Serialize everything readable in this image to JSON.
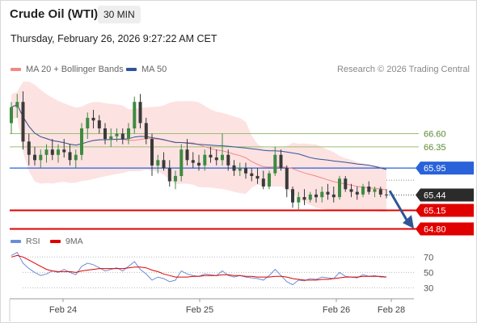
{
  "header": {
    "title": "Crude Oil (WTI)",
    "interval": "30 MIN",
    "datetime": "Thursday, February 26, 2026 9:27:22 AM CET"
  },
  "legend": [
    {
      "label": "MA 20 + Bollinger Bands",
      "color": "#f08a84"
    },
    {
      "label": "MA 50",
      "color": "#2f5597"
    }
  ],
  "copyright": "Research © 2026 Trading Central",
  "colors": {
    "candle_up": "#3d8b40",
    "candle_down": "#3a3a3a",
    "bollinger_fill": "#fde2e2",
    "ma20": "#f08a84",
    "ma50": "#2f5597",
    "resistance": "#9bbf70",
    "pivot": "#2962d9",
    "support": "#e00000",
    "last_price": "#2b2b2b",
    "rsi": "#6a8fd8",
    "rsi_ma": "#e00000",
    "arrow": "#2f5597"
  },
  "chart_data": [
    {
      "type": "candlestick",
      "x_ticks": [
        "Feb 24",
        "Feb 25",
        "Feb 26",
        "Feb 28"
      ],
      "ylim": [
        64.7,
        67.6
      ],
      "levels": [
        {
          "value": 66.6,
          "label": "66.60",
          "kind": "resistance"
        },
        {
          "value": 66.35,
          "label": "66.35",
          "kind": "resistance"
        },
        {
          "value": 65.95,
          "label": "65.95",
          "kind": "pivot"
        },
        {
          "value": 65.44,
          "label": "65.44",
          "kind": "last_price"
        },
        {
          "value": 65.15,
          "label": "65.15",
          "kind": "support"
        },
        {
          "value": 64.8,
          "label": "64.80",
          "kind": "support"
        }
      ],
      "projection": {
        "from": 65.52,
        "to": 64.85
      },
      "ohlc": [
        [
          66.8,
          67.2,
          66.6,
          67.1
        ],
        [
          67.1,
          67.35,
          66.9,
          67.2
        ],
        [
          67.2,
          67.4,
          66.3,
          66.45
        ],
        [
          66.45,
          66.6,
          66.0,
          66.2
        ],
        [
          66.2,
          66.35,
          66.0,
          66.1
        ],
        [
          66.1,
          66.3,
          65.95,
          66.2
        ],
        [
          66.2,
          66.4,
          66.05,
          66.3
        ],
        [
          66.3,
          66.5,
          66.1,
          66.2
        ],
        [
          66.2,
          66.4,
          66.05,
          66.3
        ],
        [
          66.3,
          66.5,
          66.15,
          66.25
        ],
        [
          66.25,
          66.4,
          66.0,
          66.1
        ],
        [
          66.1,
          66.3,
          65.95,
          66.2
        ],
        [
          66.2,
          66.8,
          66.1,
          66.7
        ],
        [
          66.7,
          67.0,
          66.5,
          66.9
        ],
        [
          66.9,
          67.05,
          66.7,
          66.85
        ],
        [
          66.85,
          66.95,
          66.6,
          66.7
        ],
        [
          66.7,
          66.8,
          66.4,
          66.5
        ],
        [
          66.5,
          66.7,
          66.35,
          66.55
        ],
        [
          66.55,
          66.7,
          66.45,
          66.6
        ],
        [
          66.6,
          66.7,
          66.4,
          66.5
        ],
        [
          66.5,
          66.8,
          66.4,
          66.7
        ],
        [
          66.7,
          67.3,
          66.6,
          67.2
        ],
        [
          67.2,
          67.35,
          66.7,
          66.8
        ],
        [
          66.8,
          66.9,
          66.4,
          66.5
        ],
        [
          66.5,
          66.6,
          65.8,
          66.0
        ],
        [
          66.0,
          66.2,
          65.85,
          66.1
        ],
        [
          66.1,
          66.25,
          65.9,
          65.95
        ],
        [
          65.95,
          66.1,
          65.6,
          65.7
        ],
        [
          65.7,
          65.9,
          65.55,
          65.8
        ],
        [
          65.8,
          66.4,
          65.7,
          66.3
        ],
        [
          66.3,
          66.5,
          66.0,
          66.1
        ],
        [
          66.1,
          66.25,
          65.95,
          66.05
        ],
        [
          66.05,
          66.2,
          65.9,
          66.0
        ],
        [
          66.0,
          66.3,
          65.9,
          66.2
        ],
        [
          66.2,
          66.35,
          66.05,
          66.15
        ],
        [
          66.15,
          66.3,
          66.0,
          66.1
        ],
        [
          66.1,
          66.6,
          66.0,
          66.2
        ],
        [
          66.2,
          66.3,
          65.9,
          66.0
        ],
        [
          66.0,
          66.1,
          65.8,
          65.9
        ],
        [
          65.9,
          66.05,
          65.8,
          65.95
        ],
        [
          65.95,
          66.05,
          65.75,
          65.85
        ],
        [
          65.85,
          65.95,
          65.7,
          65.8
        ],
        [
          65.8,
          65.95,
          65.65,
          65.75
        ],
        [
          65.75,
          65.9,
          65.55,
          65.6
        ],
        [
          65.6,
          65.9,
          65.55,
          65.85
        ],
        [
          65.85,
          66.35,
          65.8,
          66.2
        ],
        [
          66.2,
          66.3,
          65.9,
          65.95
        ],
        [
          65.95,
          66.0,
          65.4,
          65.55
        ],
        [
          65.55,
          65.6,
          65.2,
          65.3
        ],
        [
          65.3,
          65.5,
          65.15,
          65.4
        ],
        [
          65.4,
          65.55,
          65.25,
          65.35
        ],
        [
          65.35,
          65.5,
          65.3,
          65.45
        ],
        [
          65.45,
          65.55,
          65.3,
          65.4
        ],
        [
          65.4,
          65.6,
          65.3,
          65.5
        ],
        [
          65.5,
          65.65,
          65.35,
          65.45
        ],
        [
          65.45,
          65.6,
          65.3,
          65.4
        ],
        [
          65.4,
          65.8,
          65.35,
          65.75
        ],
        [
          65.75,
          65.8,
          65.5,
          65.55
        ],
        [
          65.55,
          65.65,
          65.4,
          65.5
        ],
        [
          65.5,
          65.6,
          65.35,
          65.45
        ],
        [
          65.45,
          65.65,
          65.4,
          65.6
        ],
        [
          65.6,
          65.7,
          65.45,
          65.5
        ],
        [
          65.5,
          65.6,
          65.4,
          65.55
        ],
        [
          65.55,
          65.6,
          65.4,
          65.45
        ],
        [
          65.45,
          65.55,
          65.38,
          65.44
        ]
      ]
    },
    {
      "type": "line",
      "title": "RSI",
      "series_names": [
        "RSI",
        "9MA"
      ],
      "ylim": [
        20,
        85
      ],
      "y_ticks": [
        70,
        50,
        30
      ],
      "rsi": [
        72,
        76,
        62,
        55,
        50,
        46,
        48,
        52,
        50,
        54,
        50,
        47,
        58,
        62,
        60,
        56,
        52,
        54,
        56,
        52,
        58,
        64,
        54,
        48,
        40,
        44,
        42,
        38,
        40,
        52,
        48,
        46,
        45,
        48,
        47,
        46,
        52,
        46,
        44,
        46,
        44,
        43,
        42,
        40,
        46,
        54,
        46,
        38,
        34,
        40,
        39,
        42,
        41,
        44,
        43,
        42,
        50,
        45,
        44,
        43,
        47,
        45,
        46,
        44,
        44
      ],
      "rsi_ma": [
        70,
        72,
        70,
        66,
        62,
        58,
        54,
        52,
        51,
        51,
        51,
        50,
        52,
        53,
        54,
        55,
        55,
        55,
        55,
        55,
        56,
        57,
        57,
        56,
        53,
        51,
        48,
        46,
        44,
        44,
        44,
        45,
        45,
        46,
        46,
        46,
        47,
        47,
        46,
        46,
        45,
        45,
        44,
        44,
        44,
        45,
        45,
        44,
        42,
        41,
        40,
        40,
        40,
        41,
        41,
        42,
        43,
        44,
        44,
        44,
        45,
        45,
        45,
        45,
        44
      ]
    }
  ]
}
